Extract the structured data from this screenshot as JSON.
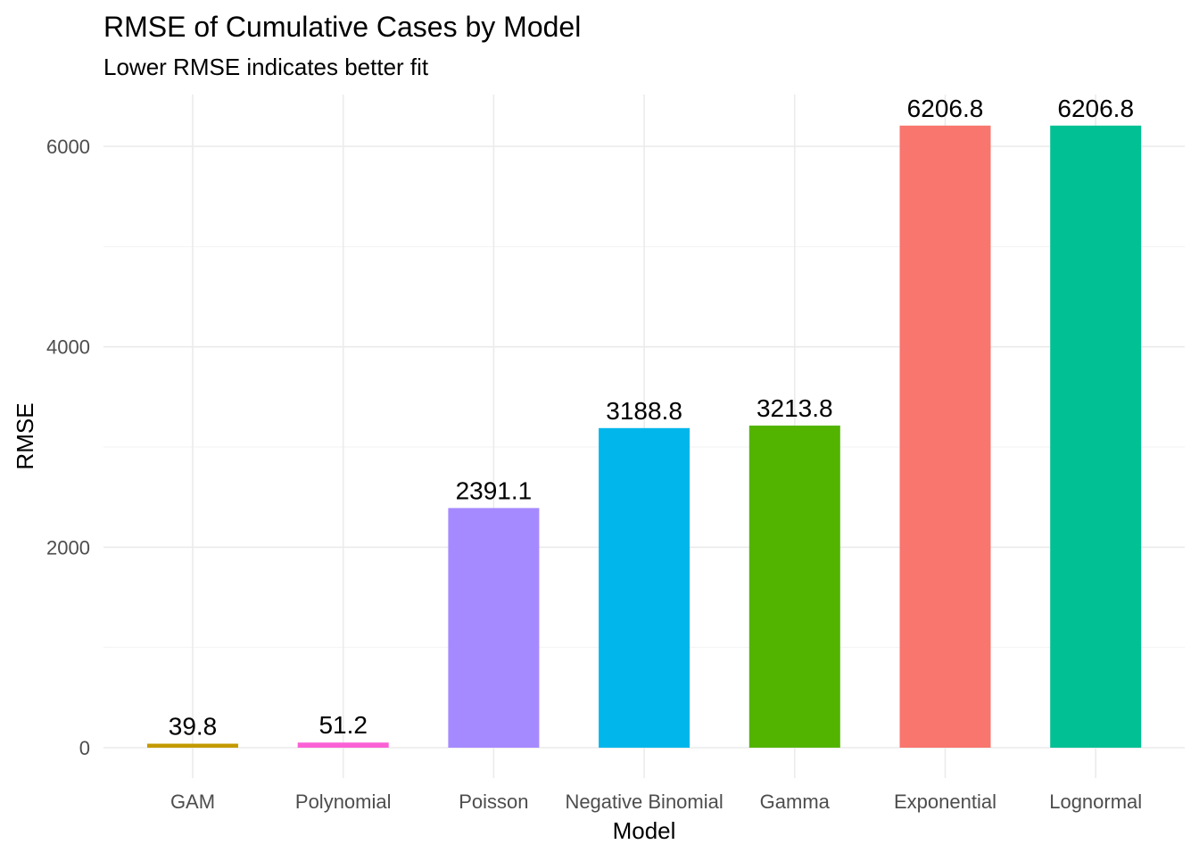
{
  "chart_data": {
    "type": "bar",
    "title": "RMSE of Cumulative Cases by Model",
    "subtitle": "Lower RMSE indicates better fit",
    "xlabel": "Model",
    "ylabel": "RMSE",
    "categories": [
      "GAM",
      "Polynomial",
      "Poisson",
      "Negative Binomial",
      "Gamma",
      "Exponential",
      "Lognormal"
    ],
    "values": [
      39.8,
      51.2,
      2391.1,
      3188.8,
      3213.8,
      6206.8,
      6206.8
    ],
    "data_labels": [
      "39.8",
      "51.2",
      "2391.1",
      "3188.8",
      "3213.8",
      "6206.8",
      "6206.8"
    ],
    "colors": [
      "#C49A00",
      "#FB61D7",
      "#A58AFF",
      "#00B6EB",
      "#53B400",
      "#F8766D",
      "#00C094"
    ],
    "y_ticks": [
      0,
      2000,
      4000,
      6000
    ],
    "y_tick_labels": [
      "0",
      "2000",
      "4000",
      "6000"
    ],
    "ylim": [
      -306,
      6517
    ],
    "grid": true,
    "legend": "none"
  }
}
